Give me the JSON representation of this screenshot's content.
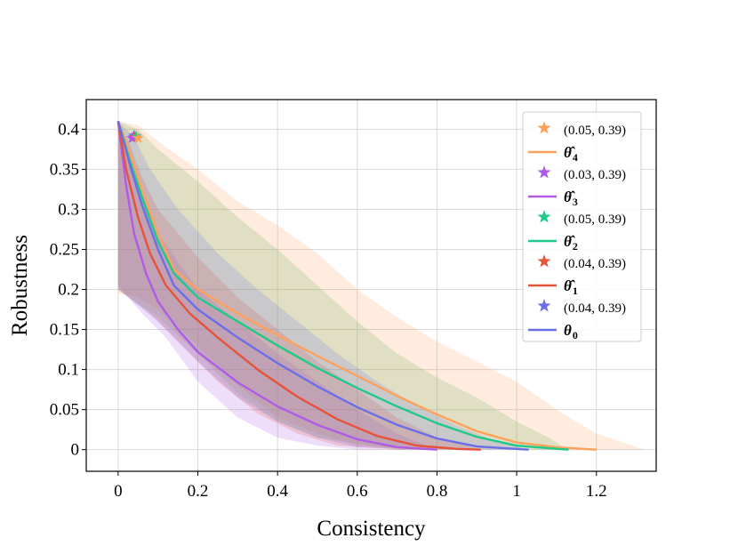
{
  "chart_data": {
    "type": "line",
    "title": "",
    "xlabel": "Consistency",
    "ylabel": "Robustness",
    "xlim": [
      -0.08,
      1.35
    ],
    "ylim": [
      -0.027,
      0.437
    ],
    "xticks": [
      0,
      0.2,
      0.4,
      0.6,
      0.8,
      1,
      1.2
    ],
    "xtick_labels": [
      "0",
      "0.2",
      "0.4",
      "0.6",
      "0.8",
      "1",
      "1.2"
    ],
    "yticks": [
      0,
      0.05,
      0.1,
      0.15,
      0.2,
      0.25,
      0.3,
      0.35,
      0.4
    ],
    "ytick_labels": [
      "0",
      "0.05",
      "0.1",
      "0.15",
      "0.2",
      "0.25",
      "0.3",
      "0.35",
      "0.4"
    ],
    "grid": true,
    "legend_position": "top-right",
    "series": [
      {
        "name": "θ̂4",
        "symbol": "θ̂",
        "subscript": "4",
        "color": "#ffa15a",
        "band_color": "#ffa15a",
        "star_label": "(0.05, 0.39)",
        "star": [
          0.05,
          0.389
        ],
        "x": [
          0,
          0.03,
          0.06,
          0.1,
          0.14,
          0.2,
          0.3,
          0.4,
          0.5,
          0.6,
          0.7,
          0.8,
          0.9,
          1.0,
          1.1,
          1.2
        ],
        "y": [
          0.41,
          0.37,
          0.325,
          0.27,
          0.225,
          0.2,
          0.17,
          0.143,
          0.117,
          0.092,
          0.067,
          0.044,
          0.023,
          0.009,
          0.003,
          0.0
        ],
        "band_upper": [
          [
            0,
            0.41
          ],
          [
            0.05,
            0.405
          ],
          [
            0.1,
            0.385
          ],
          [
            0.2,
            0.35
          ],
          [
            0.3,
            0.31
          ],
          [
            0.4,
            0.28
          ],
          [
            0.5,
            0.245
          ],
          [
            0.6,
            0.2
          ],
          [
            0.7,
            0.165
          ],
          [
            0.8,
            0.135
          ],
          [
            0.9,
            0.11
          ],
          [
            1.0,
            0.085
          ],
          [
            1.1,
            0.05
          ],
          [
            1.2,
            0.02
          ],
          [
            1.26,
            0.01
          ],
          [
            1.32,
            0.0
          ]
        ],
        "band_lower": [
          [
            1.32,
            0.0
          ],
          [
            1.0,
            0.0
          ],
          [
            0.8,
            0.0
          ],
          [
            0.6,
            0.005
          ],
          [
            0.5,
            0.02
          ],
          [
            0.4,
            0.04
          ],
          [
            0.3,
            0.08
          ],
          [
            0.2,
            0.13
          ],
          [
            0.1,
            0.175
          ],
          [
            0.05,
            0.19
          ],
          [
            0,
            0.195
          ]
        ]
      },
      {
        "name": "θ̂3",
        "symbol": "θ̂",
        "subscript": "3",
        "color": "#b05be6",
        "band_color": "#b05be6",
        "star_label": "(0.03, 0.39)",
        "star": [
          0.035,
          0.389
        ],
        "x": [
          0,
          0.02,
          0.04,
          0.07,
          0.1,
          0.15,
          0.2,
          0.3,
          0.4,
          0.5,
          0.6,
          0.7,
          0.8
        ],
        "y": [
          0.41,
          0.33,
          0.27,
          0.22,
          0.185,
          0.15,
          0.122,
          0.084,
          0.054,
          0.031,
          0.013,
          0.003,
          0.0
        ],
        "band_upper": [
          [
            0,
            0.41
          ],
          [
            0.02,
            0.38
          ],
          [
            0.05,
            0.33
          ],
          [
            0.1,
            0.27
          ],
          [
            0.2,
            0.2
          ],
          [
            0.3,
            0.16
          ],
          [
            0.4,
            0.12
          ],
          [
            0.5,
            0.085
          ],
          [
            0.6,
            0.05
          ],
          [
            0.7,
            0.02
          ],
          [
            0.8,
            0.0
          ]
        ],
        "band_lower": [
          [
            0.8,
            0.0
          ],
          [
            0.6,
            0.0
          ],
          [
            0.5,
            0.005
          ],
          [
            0.4,
            0.015
          ],
          [
            0.3,
            0.04
          ],
          [
            0.2,
            0.085
          ],
          [
            0.12,
            0.14
          ],
          [
            0.06,
            0.17
          ],
          [
            0,
            0.205
          ]
        ]
      },
      {
        "name": "θ̂2",
        "symbol": "θ̂",
        "subscript": "2",
        "color": "#1ec98a",
        "band_color": "#63b05a",
        "star_label": "(0.05, 0.39)",
        "star": [
          0.045,
          0.391
        ],
        "x": [
          0,
          0.03,
          0.06,
          0.1,
          0.14,
          0.2,
          0.3,
          0.4,
          0.5,
          0.6,
          0.7,
          0.8,
          0.9,
          1.0,
          1.13
        ],
        "y": [
          0.41,
          0.36,
          0.315,
          0.26,
          0.22,
          0.19,
          0.16,
          0.13,
          0.102,
          0.077,
          0.054,
          0.033,
          0.016,
          0.005,
          0.0
        ],
        "band_upper": [
          [
            0,
            0.41
          ],
          [
            0.05,
            0.4
          ],
          [
            0.1,
            0.375
          ],
          [
            0.2,
            0.335
          ],
          [
            0.3,
            0.29
          ],
          [
            0.4,
            0.25
          ],
          [
            0.5,
            0.205
          ],
          [
            0.6,
            0.16
          ],
          [
            0.7,
            0.12
          ],
          [
            0.8,
            0.09
          ],
          [
            0.9,
            0.065
          ],
          [
            1.0,
            0.035
          ],
          [
            1.08,
            0.015
          ],
          [
            1.13,
            0.0
          ]
        ],
        "band_lower": [
          [
            1.13,
            0.0
          ],
          [
            0.9,
            0.0
          ],
          [
            0.7,
            0.0
          ],
          [
            0.5,
            0.015
          ],
          [
            0.4,
            0.035
          ],
          [
            0.3,
            0.07
          ],
          [
            0.2,
            0.12
          ],
          [
            0.1,
            0.165
          ],
          [
            0,
            0.2
          ]
        ]
      },
      {
        "name": "θ̂1",
        "symbol": "θ̂",
        "subscript": "1",
        "color": "#e6523a",
        "band_color": "#e6523a",
        "star_label": "(0.04, 0.39)",
        "star": [
          0.04,
          0.39
        ],
        "x": [
          0,
          0.02,
          0.05,
          0.08,
          0.12,
          0.18,
          0.25,
          0.35,
          0.45,
          0.55,
          0.65,
          0.75,
          0.85,
          0.91
        ],
        "y": [
          0.41,
          0.35,
          0.29,
          0.245,
          0.205,
          0.17,
          0.14,
          0.1,
          0.066,
          0.038,
          0.017,
          0.005,
          0.001,
          0.0
        ],
        "band_upper": [
          [
            0,
            0.41
          ],
          [
            0.03,
            0.38
          ],
          [
            0.06,
            0.34
          ],
          [
            0.1,
            0.3
          ],
          [
            0.2,
            0.24
          ],
          [
            0.3,
            0.19
          ],
          [
            0.4,
            0.15
          ],
          [
            0.5,
            0.11
          ],
          [
            0.6,
            0.075
          ],
          [
            0.7,
            0.04
          ],
          [
            0.8,
            0.015
          ],
          [
            0.91,
            0.0
          ]
        ],
        "band_lower": [
          [
            0.91,
            0.0
          ],
          [
            0.7,
            0.0
          ],
          [
            0.55,
            0.005
          ],
          [
            0.45,
            0.02
          ],
          [
            0.35,
            0.045
          ],
          [
            0.25,
            0.085
          ],
          [
            0.15,
            0.135
          ],
          [
            0.08,
            0.17
          ],
          [
            0,
            0.2
          ]
        ]
      },
      {
        "name": "θ0",
        "symbol": "θ",
        "subscript": "0",
        "color": "#6c6ee8",
        "band_color": "#6c6ee8",
        "star_label": "(0.04, 0.39)",
        "star": [
          0.04,
          0.392
        ],
        "x": [
          0,
          0.03,
          0.06,
          0.1,
          0.14,
          0.2,
          0.3,
          0.4,
          0.5,
          0.6,
          0.7,
          0.8,
          0.9,
          1.03
        ],
        "y": [
          0.41,
          0.355,
          0.305,
          0.25,
          0.205,
          0.175,
          0.14,
          0.108,
          0.079,
          0.053,
          0.031,
          0.014,
          0.004,
          0.0
        ],
        "band_upper": [
          [
            0,
            0.41
          ],
          [
            0.04,
            0.39
          ],
          [
            0.08,
            0.35
          ],
          [
            0.15,
            0.3
          ],
          [
            0.25,
            0.245
          ],
          [
            0.35,
            0.2
          ],
          [
            0.45,
            0.16
          ],
          [
            0.55,
            0.12
          ],
          [
            0.65,
            0.085
          ],
          [
            0.75,
            0.055
          ],
          [
            0.85,
            0.03
          ],
          [
            0.95,
            0.01
          ],
          [
            1.03,
            0.0
          ]
        ],
        "band_lower": [
          [
            1.03,
            0.0
          ],
          [
            0.8,
            0.0
          ],
          [
            0.6,
            0.003
          ],
          [
            0.5,
            0.015
          ],
          [
            0.4,
            0.035
          ],
          [
            0.3,
            0.065
          ],
          [
            0.2,
            0.11
          ],
          [
            0.1,
            0.16
          ],
          [
            0,
            0.2
          ]
        ]
      }
    ]
  }
}
